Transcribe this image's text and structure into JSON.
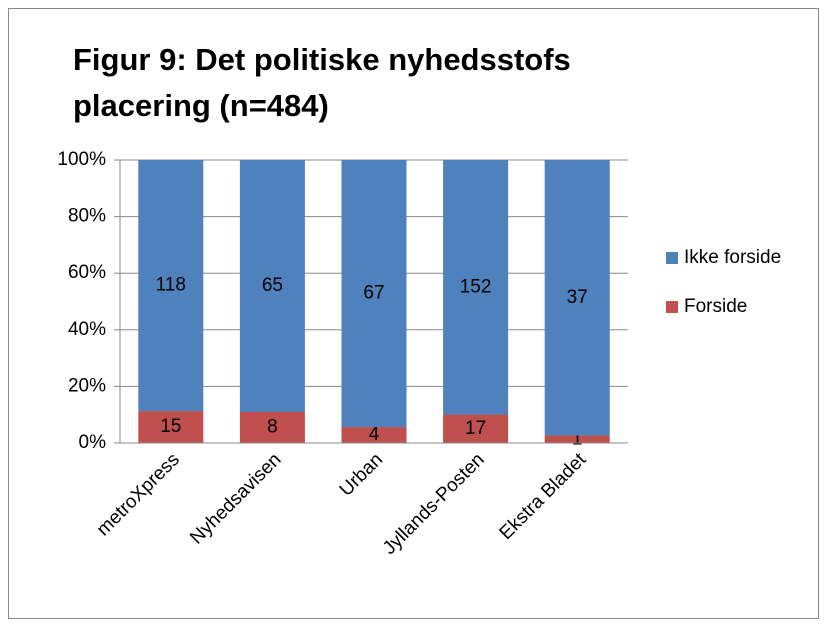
{
  "chart_data": {
    "type": "bar",
    "stacking": "percent",
    "title": [
      "Figur 9: Det politiske nyhedsstofs",
      "placering (n=484)"
    ],
    "categories": [
      "metroXpress",
      "Nyhedsavisen",
      "Urban",
      "Jyllands-Posten",
      "Ekstra Bladet"
    ],
    "series": [
      {
        "name": "Forside",
        "color": "#C0504D",
        "values": [
          15,
          8,
          4,
          17,
          1
        ]
      },
      {
        "name": "Ikke forside",
        "color": "#4F81BD",
        "values": [
          118,
          65,
          67,
          152,
          37
        ]
      }
    ],
    "ylim": [
      0,
      100
    ],
    "yticks": [
      {
        "value": 0,
        "label": "0%"
      },
      {
        "value": 20,
        "label": "20%"
      },
      {
        "value": 40,
        "label": "40%"
      },
      {
        "value": 60,
        "label": "60%"
      },
      {
        "value": 80,
        "label": "80%"
      },
      {
        "value": 100,
        "label": "100%"
      }
    ],
    "grid": true,
    "legend": "right"
  }
}
